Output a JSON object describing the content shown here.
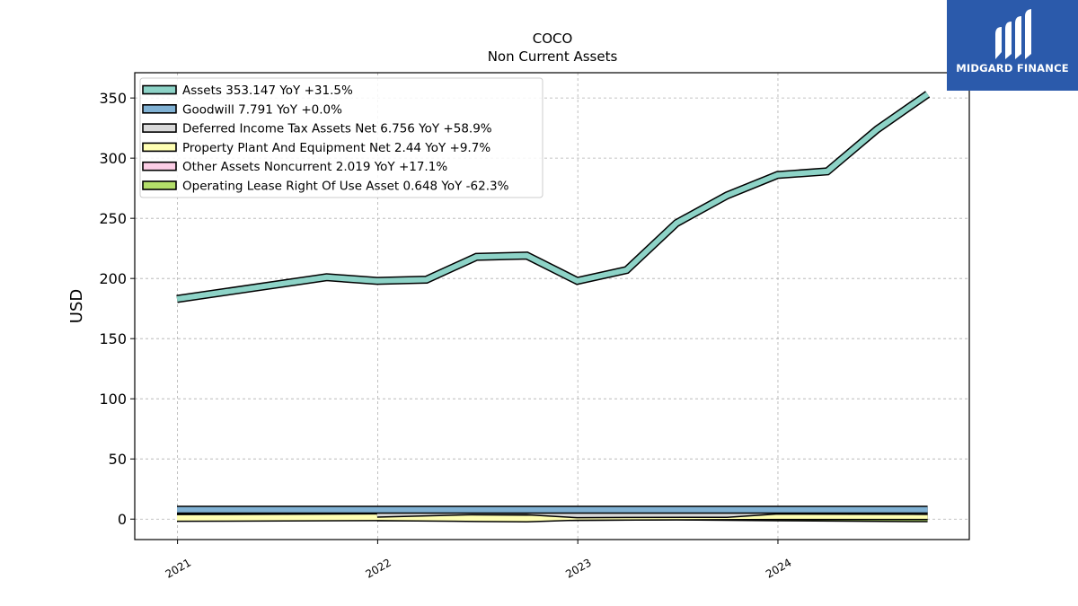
{
  "brand": {
    "name": "MIDGARD FINANCE",
    "color": "#2b5aab"
  },
  "chart_data": {
    "type": "line",
    "title": "COCO",
    "subtitle": "Non Current  Assets",
    "ylabel": "USD",
    "xlabel": "",
    "xlim": [
      "2020-10-15",
      "2024-12-15"
    ],
    "ylim": [
      -17,
      371
    ],
    "yticks": [
      0,
      50,
      100,
      150,
      200,
      250,
      300,
      350
    ],
    "xticks": [
      {
        "label": "2021",
        "date": "2021-01-01"
      },
      {
        "label": "2022",
        "date": "2022-01-01"
      },
      {
        "label": "2023",
        "date": "2023-01-01"
      },
      {
        "label": "2024",
        "date": "2024-01-01"
      }
    ],
    "grid": true,
    "legend_position": "top-left",
    "series": [
      {
        "name": "Assets",
        "legend": "Assets  353.147 YoY +31.5%",
        "color": "#8dd3c7",
        "x": [
          "2020-12-31",
          "2021-09-30",
          "2021-12-31",
          "2022-03-31",
          "2022-06-30",
          "2022-09-30",
          "2022-12-31",
          "2023-03-31",
          "2023-06-30",
          "2023-09-30",
          "2023-12-31",
          "2024-03-31",
          "2024-06-30",
          "2024-09-30"
        ],
        "y": [
          183,
          201,
          198,
          199,
          218,
          219,
          198,
          207,
          246,
          269,
          286,
          289,
          324,
          353.147
        ]
      },
      {
        "name": "Goodwill",
        "legend": "Goodwill  7.791 YoY +0.0%",
        "color": "#80b1d3",
        "x": [
          "2020-12-31",
          "2024-09-30"
        ],
        "y": [
          7.791,
          7.791
        ]
      },
      {
        "name": "Deferred Income Tax Assets Net",
        "legend": "Deferred Income Tax Assets Net  6.756 YoY +58.9%",
        "color": "#d9d9d9",
        "x": [
          "2021-12-31",
          "2022-06-30",
          "2022-09-30",
          "2022-12-31",
          "2023-03-31",
          "2023-09-30",
          "2023-12-31",
          "2024-09-30"
        ],
        "y": [
          4.5,
          6.5,
          6.4,
          4.0,
          4.2,
          4.3,
          7.0,
          6.756
        ]
      },
      {
        "name": "Property Plant And Equipment Net",
        "legend": "Property Plant And Equipment Net  2.44 YoY +9.7%",
        "color": "#ffffb3",
        "x": [
          "2020-12-31",
          "2021-12-31",
          "2022-06-30",
          "2022-09-30",
          "2022-12-31",
          "2023-06-30",
          "2023-12-31",
          "2024-09-30"
        ],
        "y": [
          1.0,
          1.6,
          0.8,
          0.5,
          1.9,
          2.2,
          2.5,
          2.44
        ]
      },
      {
        "name": "Other Assets Noncurrent",
        "legend": "Other Assets Noncurrent  2.019 YoY +17.1%",
        "color": "#fccde5",
        "x": [
          "2020-12-31",
          "2021-12-31"
        ],
        "y": [
          2.0,
          2.0
        ]
      },
      {
        "name": "Operating Lease Right Of Use Asset",
        "legend": "Operating Lease Right Of Use Asset  0.648 YoY -62.3%",
        "color": "#b3de69",
        "x": [
          "2021-12-31",
          "2022-12-31",
          "2023-06-30",
          "2023-12-31",
          "2024-09-30"
        ],
        "y": [
          1.5,
          1.7,
          2.2,
          1.5,
          0.648
        ]
      }
    ]
  }
}
